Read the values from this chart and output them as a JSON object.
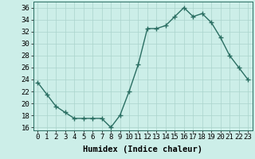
{
  "x": [
    0,
    1,
    2,
    3,
    4,
    5,
    6,
    7,
    8,
    9,
    10,
    11,
    12,
    13,
    14,
    15,
    16,
    17,
    18,
    19,
    20,
    21,
    22,
    23
  ],
  "y": [
    23.5,
    21.5,
    19.5,
    18.5,
    17.5,
    17.5,
    17.5,
    17.5,
    16,
    18,
    22,
    26.5,
    32.5,
    32.5,
    33,
    34.5,
    36,
    34.5,
    35,
    33.5,
    31,
    28,
    26,
    24
  ],
  "line_color": "#2a6e62",
  "marker": "+",
  "marker_size": 4,
  "line_width": 1.0,
  "bg_color": "#cceee8",
  "grid_color": "#aad4cc",
  "xlabel": "Humidex (Indice chaleur)",
  "xlim": [
    -0.5,
    23.5
  ],
  "ylim": [
    15.5,
    37
  ],
  "yticks": [
    16,
    18,
    20,
    22,
    24,
    26,
    28,
    30,
    32,
    34,
    36
  ],
  "xticks": [
    0,
    1,
    2,
    3,
    4,
    5,
    6,
    7,
    8,
    9,
    10,
    11,
    12,
    13,
    14,
    15,
    16,
    17,
    18,
    19,
    20,
    21,
    22,
    23
  ],
  "tick_label_fontsize": 6.5,
  "xlabel_fontsize": 7.5
}
